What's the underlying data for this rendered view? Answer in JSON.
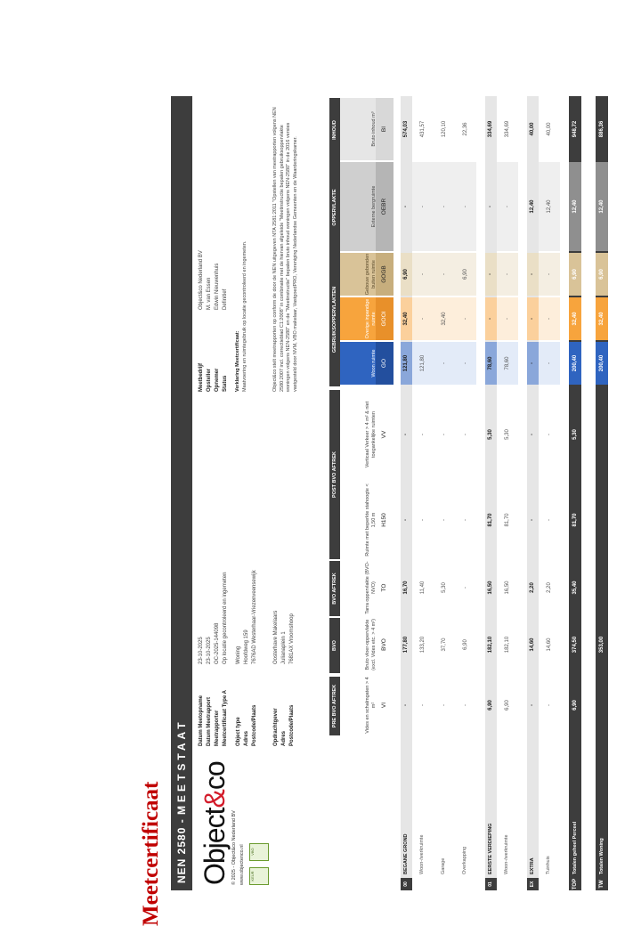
{
  "page_title": "Meetcertificaat",
  "banner": {
    "nen": "NEN 2580",
    "dash": "-",
    "title": "MEETSTAAT"
  },
  "logo": {
    "text_a": "Object",
    "text_amp": "&",
    "text_b": "co",
    "copyright": "© 2025 - Object&co Nederland BV",
    "url": "www.objectenco.nl",
    "badge1": "KEUR",
    "badge2": "VBO"
  },
  "meta_left": [
    {
      "k": "Datum Meetopname",
      "v": "23-10-2025"
    },
    {
      "k": "Datum Meetrapport",
      "v": "23-10-2025"
    },
    {
      "k": "Meetrapporter",
      "v": "OC-2025-144098"
    },
    {
      "k": "Meetcertificaat Type A",
      "v": "Op locatie gecontroleerd en ingemeten"
    }
  ],
  "meta_right": [
    {
      "k": "Meetbedrijf",
      "v": "Object&co Nederland BV"
    },
    {
      "k": "Opsteller",
      "v": "M. van Essen"
    },
    {
      "k": "Opnemer",
      "v": "Edwin Nieuwenhuis"
    },
    {
      "k": "Status",
      "v": "Definitief"
    }
  ],
  "object": [
    {
      "k": "Object type",
      "v": "Woning"
    },
    {
      "k": "Adres",
      "v": "Hoofdweg 159"
    },
    {
      "k": "Postcode/Plaats",
      "v": "7676AD Westerhaar-Vriezenveensewijk"
    }
  ],
  "client": [
    {
      "k": "Opdrachtgever",
      "v": "Oosterhave Makelaars"
    },
    {
      "k": "Adres",
      "v": "Julianaplein 1"
    },
    {
      "k": "Postcode/Plaats",
      "v": "7681AX Vroomshoop"
    }
  ],
  "verklaring_title": "Verklaring Meetcertificaat:",
  "verklaring_text": "Maatvoering en ruimtegebruik op locatie gecontroleerd en ingemeten.",
  "disclaimer": "Object&co stelt meetrapporten op conform de door de NEN uitgegeven NTA 2581:2011 \"Opstellen van meetrapporten volgens NEN 2580:2007 incl. correctieblad C1:2008\" in combinatie met de hiervan afgeleide \"Meetinstructie bepalen gebruiksoppervlakte woningen volgens NEN-2580\" en de \"Meetinstructie\" bepalen bruto inhoud woningen volgens NEN-2580\" in de 2016 versies vastgesteld door NVM, VBO makelaar, VastgoedPRO, Vereniging Nederlandse Gemeenten en de Waarderingskamer.",
  "groups": [
    "PRE BVO AFTREK",
    "BVO",
    "BVO AFTREK",
    "POST BVO AFTREK",
    "GEBRUIKSOPPERVLAKTEN",
    "OPPERVLAKTE",
    "INHOUD"
  ],
  "columns": [
    {
      "h": "Vides en schalmgaten > 4 m²",
      "c": "VI"
    },
    {
      "h": "Bruto vloer-oppervlakte (excl. Vides etc. > 4 m²)",
      "c": "BVO"
    },
    {
      "h": "Tarra oppervlakte (BVO-NVO)",
      "c": "TO"
    },
    {
      "h": "Ruimte met beperkte stahoogte < 1,50 m",
      "c": "H150"
    },
    {
      "h": "Verticaal Verkeer > 4 m² & niet toegankelijke ruimten",
      "c": "VV"
    },
    {
      "h": "Woon ruimte",
      "c": "GO"
    },
    {
      "h": "Overige inpandige ruimte",
      "c": "GOOI"
    },
    {
      "h": "Gebouw gebonden buiten ruimte",
      "c": "GOGB"
    },
    {
      "h": "Externe bergruimte",
      "c": "OEBR"
    },
    {
      "h": "Bruto inhoud m³",
      "c": "BI"
    }
  ],
  "sections": [
    {
      "tag": "00",
      "name": "BEGANE GROND",
      "totals": [
        "-",
        "177,80",
        "16,70",
        "-",
        "-",
        "121,80",
        "32,40",
        "6,90",
        "-",
        "574,03"
      ],
      "rows": [
        {
          "name": "Woon-/werkruimte",
          "vals": [
            "-",
            "133,20",
            "11,40",
            "-",
            "-",
            "121,80",
            "-",
            "-",
            "-",
            "431,57"
          ]
        },
        {
          "name": "Garage",
          "vals": [
            "-",
            "37,70",
            "5,30",
            "-",
            "-",
            "-",
            "32,40",
            "-",
            "-",
            "120,10"
          ]
        },
        {
          "name": "Overkapping",
          "vals": [
            "-",
            "6,90",
            "-",
            "-",
            "-",
            "-",
            "-",
            "6,90",
            "-",
            "22,36"
          ]
        }
      ]
    },
    {
      "tag": "01",
      "name": "EERSTE VERDIEPING",
      "totals": [
        "6,90",
        "182,10",
        "16,50",
        "81,70",
        "5,30",
        "78,60",
        "-",
        "-",
        "-",
        "334,69"
      ],
      "rows": [
        {
          "name": "Woon-/werkruimte",
          "vals": [
            "6,90",
            "182,10",
            "16,50",
            "81,70",
            "5,30",
            "78,60",
            "-",
            "-",
            "-",
            "334,69"
          ]
        }
      ]
    },
    {
      "tag": "EX",
      "name": "EXTRA",
      "totals": [
        "-",
        "14,60",
        "2,20",
        "-",
        "-",
        "-",
        "-",
        "-",
        "12,40",
        "40,00"
      ],
      "rows": [
        {
          "name": "Tuinhuis",
          "vals": [
            "-",
            "14,60",
            "2,20",
            "-",
            "-",
            "-",
            "-",
            "-",
            "12,40",
            "40,00"
          ]
        }
      ]
    }
  ],
  "totals": [
    {
      "tag": "TOP",
      "name": "Totalen geheel Perceel",
      "vals": [
        "6,90",
        "374,50",
        "35,40",
        "81,70",
        "5,30",
        "200,40",
        "32,40",
        "6,90",
        "12,40",
        "948,72"
      ]
    },
    {
      "tag": "TW",
      "name": "Totalen Woning",
      "vals": [
        "",
        "353,00",
        "",
        "",
        "",
        "200,40",
        "32,40",
        "6,90",
        "12,40",
        "886,36"
      ]
    }
  ],
  "colors": {
    "go": "#2f64c0",
    "gooi": "#f7a43d",
    "gogb": "#d9c398",
    "oebr": "#8f8f8f",
    "bi": "#3d3d3d"
  }
}
